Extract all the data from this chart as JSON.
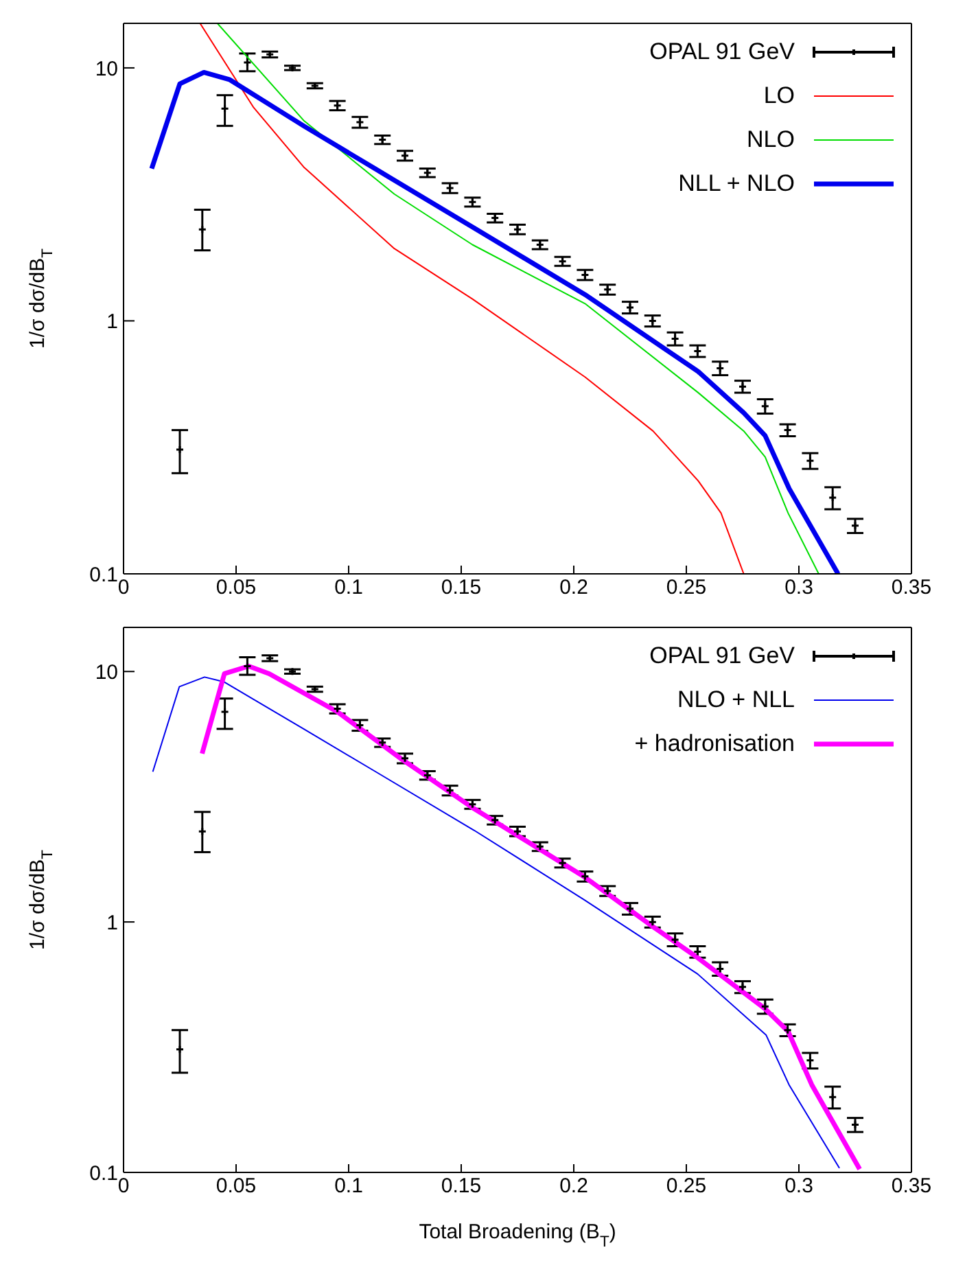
{
  "chart_data": [
    {
      "type": "line",
      "ylabel": "1/σ dσ/dB$_{T}$",
      "xlim": [
        0,
        0.35
      ],
      "xticks": [
        0,
        0.05,
        0.1,
        0.15,
        0.2,
        0.25,
        0.3,
        0.35
      ],
      "ylim": [
        0.1,
        15
      ],
      "yticks": [
        0.1,
        1,
        10
      ],
      "log": "y",
      "legend": "top right",
      "grid": false,
      "series": [
        {
          "name": "OPAL 91 GeV",
          "type": "scatter",
          "color": "#000000",
          "marker": "cross",
          "x": [
            0.025,
            0.035,
            0.045,
            0.055,
            0.065,
            0.075,
            0.085,
            0.095,
            0.105,
            0.115,
            0.125,
            0.135,
            0.145,
            0.155,
            0.165,
            0.175,
            0.185,
            0.195,
            0.205,
            0.215,
            0.225,
            0.235,
            0.245,
            0.255,
            0.265,
            0.275,
            0.285,
            0.295,
            0.305,
            0.315,
            0.325
          ],
          "values": [
            0.31,
            2.3,
            6.9,
            10.5,
            11.3,
            10.0,
            8.5,
            7.1,
            6.1,
            5.2,
            4.5,
            3.85,
            3.35,
            2.95,
            2.55,
            2.3,
            2.0,
            1.72,
            1.52,
            1.33,
            1.13,
            1.0,
            0.85,
            0.76,
            0.65,
            0.55,
            0.46,
            0.37,
            0.28,
            0.2,
            0.155
          ],
          "errors": [
            [
              0.25,
              0.37
            ],
            [
              1.9,
              2.75
            ],
            [
              5.9,
              7.8
            ],
            [
              9.7,
              11.4
            ],
            0.3,
            0.2,
            0.2,
            0.3,
            0.3,
            0.2,
            0.2,
            0.15,
            0.15,
            0.12,
            0.1,
            0.1,
            0.08,
            0.07,
            0.07,
            0.06,
            0.06,
            0.05,
            0.05,
            0.04,
            0.04,
            0.03,
            0.03,
            0.02,
            0.02,
            0.02,
            0.01
          ]
        },
        {
          "name": "LO",
          "type": "line",
          "color": "#ff0000",
          "x": [
            0.034,
            0.0578,
            0.08,
            0.1203,
            0.155,
            0.205,
            0.2352,
            0.2553,
            0.2654,
            0.2755
          ],
          "values": [
            15,
            6.97,
            4.06,
            1.93,
            1.22,
            0.6,
            0.367,
            0.233,
            0.174,
            0.1
          ]
        },
        {
          "name": "NLO",
          "type": "line",
          "color": "#00dd00",
          "x": [
            0.0417,
            0.08,
            0.1203,
            0.155,
            0.205,
            0.2553,
            0.2755,
            0.285,
            0.2952,
            0.3088
          ],
          "values": [
            15,
            6.2,
            3.17,
            2.0,
            1.17,
            0.52,
            0.367,
            0.29,
            0.174,
            0.1
          ]
        },
        {
          "name": "NLL + NLO",
          "type": "line",
          "color": "#0000ee",
          "x": [
            0.0125,
            0.025,
            0.0357,
            0.047,
            0.08,
            0.112,
            0.155,
            0.205,
            0.2553,
            0.2755,
            0.285,
            0.2957,
            0.3174
          ],
          "values": [
            4.0,
            8.65,
            9.6,
            9.0,
            5.9,
            3.98,
            2.35,
            1.27,
            0.63,
            0.433,
            0.352,
            0.217,
            0.1
          ]
        }
      ]
    },
    {
      "type": "line",
      "xlabel": "Total Broadening (B$_{T}$)",
      "ylabel": "1/σ dσ/dB$_{T}$",
      "xlim": [
        0,
        0.35
      ],
      "xticks": [
        0,
        0.05,
        0.1,
        0.15,
        0.2,
        0.25,
        0.3,
        0.35
      ],
      "ylim": [
        0.1,
        15
      ],
      "yticks": [
        0.1,
        1,
        10
      ],
      "log": "y",
      "legend": "top right",
      "grid": false,
      "series": [
        {
          "name": "OPAL 91 GeV",
          "type": "scatter",
          "color": "#000000",
          "marker": "cross",
          "x": [
            0.025,
            0.035,
            0.045,
            0.055,
            0.065,
            0.075,
            0.085,
            0.095,
            0.105,
            0.115,
            0.125,
            0.135,
            0.145,
            0.155,
            0.165,
            0.175,
            0.185,
            0.195,
            0.205,
            0.215,
            0.225,
            0.235,
            0.245,
            0.255,
            0.265,
            0.275,
            0.285,
            0.295,
            0.305,
            0.315,
            0.325
          ],
          "values": [
            0.31,
            2.3,
            6.9,
            10.5,
            11.3,
            10.0,
            8.5,
            7.1,
            6.1,
            5.2,
            4.5,
            3.85,
            3.35,
            2.95,
            2.55,
            2.3,
            2.0,
            1.72,
            1.52,
            1.33,
            1.13,
            1.0,
            0.85,
            0.76,
            0.65,
            0.55,
            0.46,
            0.37,
            0.28,
            0.2,
            0.155
          ],
          "errors": [
            [
              0.25,
              0.37
            ],
            [
              1.9,
              2.75
            ],
            [
              5.9,
              7.8
            ],
            [
              9.7,
              11.4
            ],
            0.3,
            0.2,
            0.2,
            0.3,
            0.3,
            0.2,
            0.2,
            0.15,
            0.15,
            0.12,
            0.1,
            0.1,
            0.08,
            0.07,
            0.07,
            0.06,
            0.06,
            0.05,
            0.05,
            0.04,
            0.04,
            0.03,
            0.03,
            0.02,
            0.02,
            0.02,
            0.01
          ]
        },
        {
          "name": "NLO + NLL",
          "type": "line",
          "color": "#0000ee",
          "x": [
            0.013,
            0.0248,
            0.036,
            0.0445,
            0.08,
            0.112,
            0.1558,
            0.2044,
            0.255,
            0.2854,
            0.2956,
            0.318
          ],
          "values": [
            3.98,
            8.7,
            9.5,
            9.1,
            5.9,
            3.98,
            2.32,
            1.23,
            0.62,
            0.354,
            0.224,
            0.104
          ]
        },
        {
          "name": "+ hadronisation",
          "type": "line",
          "color": "#ff00ff",
          "x": [
            0.0349,
            0.0448,
            0.0556,
            0.0647,
            0.095,
            0.1235,
            0.1558,
            0.2044,
            0.235,
            0.255,
            0.285,
            0.2952,
            0.3057,
            0.327
          ],
          "values": [
            4.7,
            9.8,
            10.5,
            9.8,
            6.9,
            4.47,
            2.83,
            1.52,
            0.96,
            0.72,
            0.45,
            0.366,
            0.224,
            0.103
          ]
        }
      ]
    }
  ]
}
